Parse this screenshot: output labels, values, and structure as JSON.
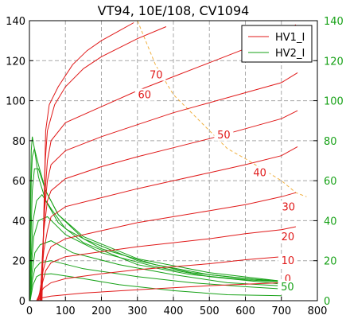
{
  "chart_data": {
    "type": "line",
    "title": "VT94, 10E/108, CV1094",
    "xlim": [
      0,
      800
    ],
    "ylim": [
      0,
      140
    ],
    "y2lim": [
      0,
      140
    ],
    "x_ticks": [
      0,
      100,
      200,
      300,
      400,
      500,
      600,
      700,
      800
    ],
    "y_ticks": [
      0,
      20,
      40,
      60,
      80,
      100,
      120,
      140
    ],
    "y2_ticks": [
      0,
      20,
      40,
      60,
      80,
      100,
      120,
      140
    ],
    "grid": true,
    "legend_position": "top-right",
    "legend": [
      {
        "label": "HV1_I",
        "color": "#e01919"
      },
      {
        "label": "HV2_I",
        "color": "#16a116"
      }
    ],
    "colors": {
      "hv1": "#e01919",
      "hv2": "#16a116",
      "load_line": "#f0b040",
      "y2_axis": "#16a116"
    },
    "hv1_curves": [
      {
        "label": "0",
        "points": [
          [
            20,
            0
          ],
          [
            30,
            1.3
          ],
          [
            60,
            2.3
          ],
          [
            150,
            3.8
          ],
          [
            300,
            5.5
          ],
          [
            500,
            7.5
          ],
          [
            700,
            9
          ]
        ]
      },
      {
        "label": "10",
        "points": [
          [
            20,
            0
          ],
          [
            30,
            4
          ],
          [
            40,
            6.5
          ],
          [
            60,
            9
          ],
          [
            100,
            11
          ],
          [
            200,
            13.5
          ],
          [
            300,
            15.5
          ],
          [
            400,
            17
          ],
          [
            500,
            18.5
          ],
          [
            600,
            20.5
          ],
          [
            700,
            22
          ]
        ]
      },
      {
        "label": "20",
        "points": [
          [
            22,
            0
          ],
          [
            35,
            8
          ],
          [
            45,
            15
          ],
          [
            60,
            19
          ],
          [
            100,
            22
          ],
          [
            200,
            24.5
          ],
          [
            300,
            27
          ],
          [
            400,
            29
          ],
          [
            500,
            31
          ],
          [
            600,
            33.5
          ],
          [
            700,
            35.5
          ],
          [
            740,
            37
          ]
        ]
      },
      {
        "label": "30",
        "points": [
          [
            25,
            0
          ],
          [
            38,
            15
          ],
          [
            50,
            23
          ],
          [
            60,
            27
          ],
          [
            100,
            31
          ],
          [
            200,
            35
          ],
          [
            300,
            39
          ],
          [
            400,
            42
          ],
          [
            500,
            45
          ],
          [
            600,
            48
          ],
          [
            700,
            52
          ],
          [
            740,
            54
          ]
        ]
      },
      {
        "label": "40",
        "points": [
          [
            28,
            0
          ],
          [
            40,
            25
          ],
          [
            50,
            35
          ],
          [
            60,
            42
          ],
          [
            100,
            47
          ],
          [
            200,
            51.5
          ],
          [
            300,
            56
          ],
          [
            400,
            60
          ],
          [
            500,
            64
          ],
          [
            600,
            68
          ],
          [
            700,
            72.5
          ],
          [
            745,
            77
          ]
        ]
      },
      {
        "label": "50",
        "points": [
          [
            30,
            0
          ],
          [
            40,
            35
          ],
          [
            50,
            50
          ],
          [
            60,
            55
          ],
          [
            100,
            61
          ],
          [
            200,
            67
          ],
          [
            300,
            72
          ],
          [
            400,
            76.5
          ],
          [
            500,
            81
          ],
          [
            600,
            86
          ],
          [
            700,
            91
          ],
          [
            745,
            95
          ]
        ]
      },
      {
        "label": "60",
        "points": [
          [
            30,
            0
          ],
          [
            42,
            45
          ],
          [
            50,
            60
          ],
          [
            60,
            68
          ],
          [
            100,
            75
          ],
          [
            200,
            82
          ],
          [
            300,
            88
          ],
          [
            400,
            94
          ],
          [
            500,
            99
          ],
          [
            600,
            104
          ],
          [
            700,
            109
          ],
          [
            745,
            114
          ]
        ]
      },
      {
        "label": "70",
        "points": [
          [
            32,
            0
          ],
          [
            44,
            55
          ],
          [
            50,
            70
          ],
          [
            60,
            80
          ],
          [
            100,
            89
          ],
          [
            200,
            97
          ],
          [
            300,
            105
          ],
          [
            400,
            112
          ],
          [
            500,
            119
          ],
          [
            600,
            126
          ],
          [
            700,
            133
          ],
          [
            740,
            138
          ]
        ]
      },
      {
        "label": "",
        "points": [
          [
            34,
            0
          ],
          [
            44,
            70
          ],
          [
            50,
            85
          ],
          [
            70,
            98
          ],
          [
            100,
            107
          ],
          [
            150,
            116
          ],
          [
            200,
            122
          ],
          [
            300,
            131
          ],
          [
            380,
            137
          ]
        ]
      },
      {
        "label": "",
        "points": [
          [
            35,
            0
          ],
          [
            45,
            85
          ],
          [
            55,
            98
          ],
          [
            80,
            107
          ],
          [
            120,
            118
          ],
          [
            160,
            125
          ],
          [
            200,
            130
          ],
          [
            250,
            135
          ],
          [
            290,
            139
          ]
        ]
      }
    ],
    "hv2_curves": [
      {
        "label": "50",
        "points": [
          [
            2,
            0
          ],
          [
            10,
            8
          ],
          [
            20,
            12
          ],
          [
            30,
            13
          ],
          [
            60,
            13.5
          ],
          [
            150,
            11
          ],
          [
            250,
            8
          ],
          [
            400,
            5
          ],
          [
            550,
            3
          ],
          [
            700,
            2.5
          ]
        ]
      },
      {
        "label": "",
        "points": [
          [
            2,
            0
          ],
          [
            8,
            10
          ],
          [
            15,
            16
          ],
          [
            30,
            19
          ],
          [
            60,
            20
          ],
          [
            150,
            16
          ],
          [
            300,
            12
          ],
          [
            450,
            9
          ],
          [
            600,
            7
          ],
          [
            690,
            6
          ]
        ]
      },
      {
        "label": "",
        "points": [
          [
            2,
            0
          ],
          [
            8,
            15
          ],
          [
            15,
            24
          ],
          [
            30,
            28
          ],
          [
            60,
            30
          ],
          [
            120,
            24
          ],
          [
            250,
            18
          ],
          [
            400,
            13
          ],
          [
            550,
            9
          ],
          [
            690,
            7.5
          ]
        ]
      },
      {
        "label": "",
        "points": [
          [
            2,
            0
          ],
          [
            6,
            18
          ],
          [
            12,
            32
          ],
          [
            25,
            40
          ],
          [
            50,
            42
          ],
          [
            100,
            33
          ],
          [
            200,
            24
          ],
          [
            350,
            17
          ],
          [
            500,
            12
          ],
          [
            690,
            8.5
          ]
        ]
      },
      {
        "label": "",
        "points": [
          [
            2,
            0
          ],
          [
            5,
            22
          ],
          [
            10,
            40
          ],
          [
            20,
            50
          ],
          [
            35,
            53
          ],
          [
            60,
            46
          ],
          [
            100,
            36
          ],
          [
            200,
            26
          ],
          [
            350,
            18
          ],
          [
            500,
            13
          ],
          [
            690,
            9.5
          ]
        ]
      },
      {
        "label": "",
        "points": [
          [
            2,
            0
          ],
          [
            4,
            30
          ],
          [
            8,
            55
          ],
          [
            14,
            66
          ],
          [
            25,
            66
          ],
          [
            45,
            55
          ],
          [
            80,
            43
          ],
          [
            150,
            32
          ],
          [
            300,
            21
          ],
          [
            500,
            14
          ],
          [
            690,
            10
          ]
        ]
      },
      {
        "label": "",
        "points": [
          [
            2,
            0
          ],
          [
            3,
            40
          ],
          [
            5,
            60
          ],
          [
            8,
            72
          ],
          [
            14,
            76
          ],
          [
            25,
            68
          ],
          [
            45,
            55
          ],
          [
            80,
            43
          ],
          [
            150,
            31
          ],
          [
            300,
            20
          ],
          [
            450,
            14
          ],
          [
            600,
            11
          ],
          [
            690,
            10
          ]
        ]
      },
      {
        "label": "",
        "points": [
          [
            2,
            0
          ],
          [
            3,
            55
          ],
          [
            5,
            75
          ],
          [
            8,
            82
          ],
          [
            14,
            76
          ],
          [
            25,
            62
          ],
          [
            45,
            50
          ],
          [
            80,
            39
          ],
          [
            150,
            29
          ],
          [
            300,
            18
          ],
          [
            450,
            13
          ],
          [
            600,
            10.5
          ],
          [
            690,
            9.5
          ]
        ]
      }
    ],
    "load_line": [
      [
        300,
        140
      ],
      [
        350,
        118
      ],
      [
        400,
        103
      ],
      [
        500,
        85
      ],
      [
        550,
        76
      ],
      [
        600,
        71
      ],
      [
        700,
        60
      ],
      [
        740,
        54
      ],
      [
        770,
        52
      ]
    ]
  }
}
